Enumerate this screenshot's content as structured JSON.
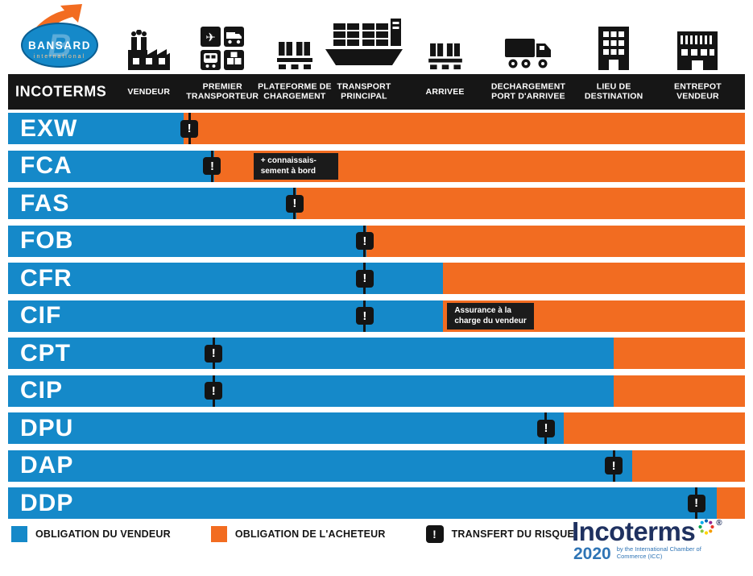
{
  "brand": {
    "name": "BANSARD",
    "subtitle": "international"
  },
  "table_header": {
    "incoterms_label": "INCOTERMS"
  },
  "chart_data": {
    "type": "bar",
    "subtype": "horizontal-100pct-stacked-with-risk-markers",
    "orientation": "horizontal",
    "stages": [
      "VENDEUR",
      "PREMIER TRANSPORTEUR",
      "PLATEFORME DE CHARGEMENT",
      "TRANSPORT PRINCIPAL",
      "ARRIVEE",
      "DECHARGEMENT PORT D'ARRIVEE",
      "LIEU DE DESTINATION",
      "ENTREPOT VENDEUR"
    ],
    "series_meaning": {
      "blue_segment": "OBLIGATION DU VENDEUR",
      "orange_segment": "OBLIGATION DE L'ACHETEUR",
      "marker": "TRANSFERT DU RISQUE"
    },
    "rows": [
      {
        "code": "EXW",
        "seller_pct": 23.8,
        "buyer_pct": 76.2,
        "risk_pct": 24.6
      },
      {
        "code": "FCA",
        "seller_pct": 28.0,
        "buyer_pct": 72.0,
        "risk_pct": 27.7,
        "note": {
          "lines": [
            "+ connaissais-",
            "sement à bord"
          ],
          "left_pct": 33.3,
          "width_pct": 11.5
        }
      },
      {
        "code": "FAS",
        "seller_pct": 39.1,
        "buyer_pct": 60.9,
        "risk_pct": 38.9
      },
      {
        "code": "FOB",
        "seller_pct": 48.6,
        "buyer_pct": 51.4,
        "risk_pct": 48.4
      },
      {
        "code": "CFR",
        "seller_pct": 59.0,
        "buyer_pct": 41.0,
        "risk_pct": 48.4
      },
      {
        "code": "CIF",
        "seller_pct": 59.0,
        "buyer_pct": 41.0,
        "risk_pct": 48.4,
        "note": {
          "lines": [
            "Assurance à la",
            "charge du vendeur"
          ],
          "left_pct": 59.6,
          "width_pct": 10.2
        }
      },
      {
        "code": "CPT",
        "seller_pct": 82.2,
        "buyer_pct": 17.8,
        "risk_pct": 27.9
      },
      {
        "code": "CIP",
        "seller_pct": 82.2,
        "buyer_pct": 17.8,
        "risk_pct": 27.9
      },
      {
        "code": "DPU",
        "seller_pct": 75.4,
        "buyer_pct": 24.6,
        "risk_pct": 73.0
      },
      {
        "code": "DAP",
        "seller_pct": 84.7,
        "buyer_pct": 15.3,
        "risk_pct": 82.2
      },
      {
        "code": "DDP",
        "seller_pct": 96.2,
        "buyer_pct": 3.8,
        "risk_pct": 93.4
      }
    ]
  },
  "legend": {
    "seller": "OBLIGATION DU VENDEUR",
    "buyer": "OBLIGATION DE L'ACHETEUR",
    "risk": "TRANSFERT DU RISQUE",
    "risk_symbol": "!"
  },
  "footer_logo": {
    "title": "Incoterms",
    "registered": "®",
    "year": "2020",
    "byline": "by the International Chamber of Commerce (ICC)"
  },
  "colors": {
    "seller_blue": "#1589C9",
    "buyer_orange": "#F26C21",
    "header_black": "#161616",
    "marker_black": "#141414"
  }
}
